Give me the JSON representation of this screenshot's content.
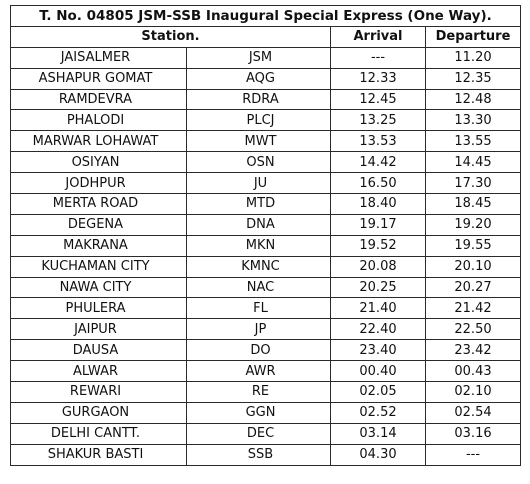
{
  "table": {
    "title": "T. No. 04805 JSM-SSB Inaugural Special Express (One Way).",
    "headers": {
      "station": "Station.",
      "arrival": "Arrival",
      "departure": "Departure"
    },
    "rows": [
      {
        "name": "JAISALMER",
        "code": "JSM",
        "arrival": "---",
        "departure": "11.20"
      },
      {
        "name": "ASHAPUR GOMAT",
        "code": "AQG",
        "arrival": "12.33",
        "departure": "12.35"
      },
      {
        "name": "RAMDEVRA",
        "code": "RDRA",
        "arrival": "12.45",
        "departure": "12.48"
      },
      {
        "name": "PHALODI",
        "code": "PLCJ",
        "arrival": "13.25",
        "departure": "13.30"
      },
      {
        "name": "MARWAR LOHAWAT",
        "code": "MWT",
        "arrival": "13.53",
        "departure": "13.55"
      },
      {
        "name": "OSIYAN",
        "code": "OSN",
        "arrival": "14.42",
        "departure": "14.45"
      },
      {
        "name": "JODHPUR",
        "code": "JU",
        "arrival": "16.50",
        "departure": "17.30"
      },
      {
        "name": "MERTA ROAD",
        "code": "MTD",
        "arrival": "18.40",
        "departure": "18.45"
      },
      {
        "name": "DEGENA",
        "code": "DNA",
        "arrival": "19.17",
        "departure": "19.20"
      },
      {
        "name": "MAKRANA",
        "code": "MKN",
        "arrival": "19.52",
        "departure": "19.55"
      },
      {
        "name": "KUCHAMAN CITY",
        "code": "KMNC",
        "arrival": "20.08",
        "departure": "20.10"
      },
      {
        "name": "NAWA CITY",
        "code": "NAC",
        "arrival": "20.25",
        "departure": "20.27"
      },
      {
        "name": "PHULERA",
        "code": "FL",
        "arrival": "21.40",
        "departure": "21.42"
      },
      {
        "name": "JAIPUR",
        "code": "JP",
        "arrival": "22.40",
        "departure": "22.50"
      },
      {
        "name": "DAUSA",
        "code": "DO",
        "arrival": "23.40",
        "departure": "23.42"
      },
      {
        "name": "ALWAR",
        "code": "AWR",
        "arrival": "00.40",
        "departure": "00.43"
      },
      {
        "name": "REWARI",
        "code": "RE",
        "arrival": "02.05",
        "departure": "02.10"
      },
      {
        "name": "GURGAON",
        "code": "GGN",
        "arrival": "02.52",
        "departure": "02.54"
      },
      {
        "name": "DELHI CANTT.",
        "code": "DEC",
        "arrival": "03.14",
        "departure": "03.16"
      },
      {
        "name": "SHAKUR BASTI",
        "code": "SSB",
        "arrival": "04.30",
        "departure": "---"
      }
    ]
  }
}
